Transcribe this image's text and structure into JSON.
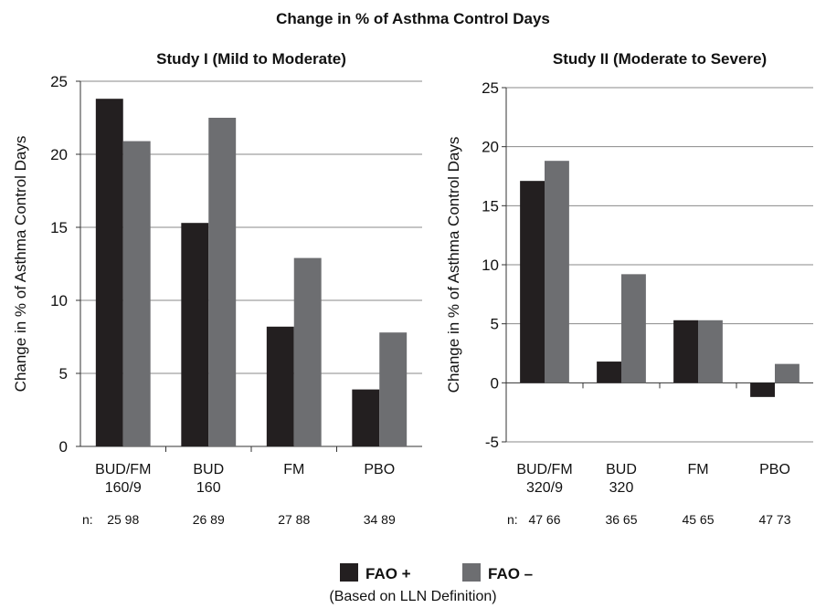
{
  "figure": {
    "title": "Change in % of Asthma Control Days",
    "legend_items": [
      {
        "label": "FAO +",
        "color": "#231f20"
      },
      {
        "label": "FAO –",
        "color": "#6d6e71"
      }
    ],
    "legend_note": "(Based on LLN Definition)",
    "n_prefix": "n:"
  },
  "chart_data": [
    {
      "type": "bar",
      "title": "Study I (Mild to Moderate)",
      "ylabel": "Change in % of Asthma Control Days",
      "xlabel": "",
      "ylim": [
        0,
        25
      ],
      "yticks": [
        0,
        5,
        10,
        15,
        20,
        25
      ],
      "grid": true,
      "categories": [
        "BUD/FM\n160/9",
        "BUD\n160",
        "FM",
        "PBO"
      ],
      "n_labels": [
        "25 98",
        "26 89",
        "27 88",
        "34 89"
      ],
      "series": [
        {
          "name": "FAO +",
          "color": "#231f20",
          "values": [
            23.8,
            15.3,
            8.2,
            3.9
          ]
        },
        {
          "name": "FAO –",
          "color": "#6d6e71",
          "values": [
            20.9,
            22.5,
            12.9,
            7.8
          ]
        }
      ]
    },
    {
      "type": "bar",
      "title": "Study II (Moderate to Severe)",
      "ylabel": "Change in % of Asthma Control Days",
      "xlabel": "",
      "ylim": [
        -5,
        25
      ],
      "yticks": [
        -5,
        0,
        5,
        10,
        15,
        20,
        25
      ],
      "grid": true,
      "categories": [
        "BUD/FM\n320/9",
        "BUD\n320",
        "FM",
        "PBO"
      ],
      "n_labels": [
        "47 66",
        "36 65",
        "45 65",
        "47 73"
      ],
      "series": [
        {
          "name": "FAO +",
          "color": "#231f20",
          "values": [
            17.1,
            1.8,
            5.3,
            -1.2
          ]
        },
        {
          "name": "FAO –",
          "color": "#6d6e71",
          "values": [
            18.8,
            9.2,
            5.3,
            1.6
          ]
        }
      ]
    }
  ]
}
